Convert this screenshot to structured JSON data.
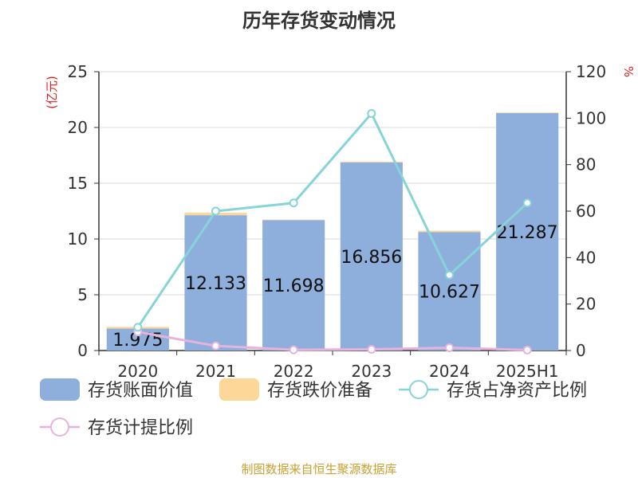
{
  "title": "历年存货变动情况",
  "source": "制图数据来自恒生聚源数据库",
  "colors": {
    "book_value": "#8eaedb",
    "impairment": "#fdd797",
    "net_asset_ratio": "#87d4d8",
    "provision_ratio": "#e6b3dc",
    "unit_label": "#e02020",
    "source": "#c8a032"
  },
  "chart_data": {
    "type": "bar",
    "title": "历年存货变动情况",
    "categories": [
      "2020",
      "2021",
      "2022",
      "2023",
      "2024",
      "2025H1"
    ],
    "y_left": {
      "unit": "(亿元)",
      "ylim": [
        0,
        25
      ],
      "ticks": [
        "0",
        "5",
        "10",
        "15",
        "20",
        "25"
      ]
    },
    "y_right": {
      "unit": "%",
      "ylim": [
        0,
        120
      ],
      "ticks": [
        "0",
        "20",
        "40",
        "60",
        "80",
        "100",
        "120"
      ]
    },
    "grid": true,
    "legend_position": "bottom",
    "series": [
      {
        "name": "存货账面价值",
        "type": "bar",
        "axis": "left",
        "values": [
          1.975,
          12.133,
          11.698,
          16.856,
          10.627,
          21.287
        ],
        "labels": [
          "1.975",
          "12.133",
          "11.698",
          "16.856",
          "10.627",
          "21.287"
        ]
      },
      {
        "name": "存货跌价准备",
        "type": "bar",
        "stacked": true,
        "axis": "left",
        "values": [
          0.15,
          0.22,
          0.04,
          0.08,
          0.12,
          0.05
        ]
      },
      {
        "name": "存货占净资产比例",
        "type": "line",
        "axis": "right",
        "values": [
          10,
          60,
          63.5,
          102,
          32.5,
          63.5
        ]
      },
      {
        "name": "存货计提比例",
        "type": "line",
        "axis": "right",
        "values": [
          8,
          2,
          0.3,
          0.5,
          1.2,
          0.2
        ]
      }
    ]
  }
}
